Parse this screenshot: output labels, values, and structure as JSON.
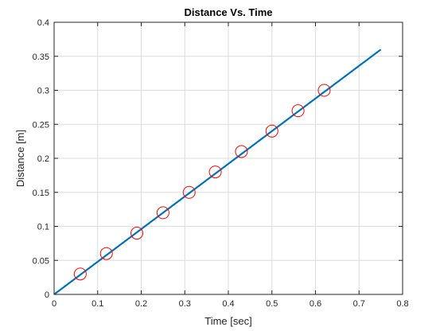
{
  "chart_data": {
    "type": "scatter",
    "title": "Distance Vs. Time",
    "xlabel": "Time [sec]",
    "ylabel": "Distance [m]",
    "xlim": [
      0,
      0.8
    ],
    "ylim": [
      0,
      0.4
    ],
    "xticks": [
      0,
      0.1,
      0.2,
      0.3,
      0.4,
      0.5,
      0.6,
      0.7,
      0.8
    ],
    "xtick_labels": [
      "0",
      "0.1",
      "0.2",
      "0.3",
      "0.4",
      "0.5",
      "0.6",
      "0.7",
      "0.8"
    ],
    "yticks": [
      0,
      0.05,
      0.1,
      0.15,
      0.2,
      0.25,
      0.3,
      0.35,
      0.4
    ],
    "ytick_labels": [
      "0",
      "0.05",
      "0.1",
      "0.15",
      "0.2",
      "0.25",
      "0.3",
      "0.35",
      "0.4"
    ],
    "grid": true,
    "series": [
      {
        "kind": "markers",
        "marker": "circle",
        "color": "#ff0000",
        "x": [
          0.06,
          0.12,
          0.19,
          0.25,
          0.31,
          0.37,
          0.43,
          0.5,
          0.56,
          0.62
        ],
        "y": [
          0.03,
          0.06,
          0.09,
          0.12,
          0.15,
          0.18,
          0.21,
          0.24,
          0.27,
          0.3
        ]
      },
      {
        "kind": "line",
        "color": "#0072bd",
        "x": [
          0,
          0.75
        ],
        "y": [
          0,
          0.36
        ]
      }
    ]
  }
}
